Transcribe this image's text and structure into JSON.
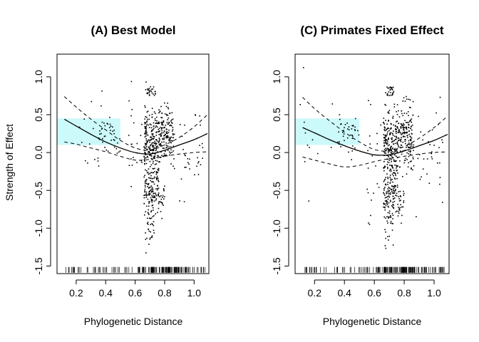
{
  "chart_data": [
    {
      "type": "scatter",
      "title": "(A) Best Model",
      "xlabel": "Phylogenetic Distance",
      "ylabel": "Strength of Effect",
      "xlim": [
        0.07,
        1.1
      ],
      "ylim": [
        -1.6,
        1.3
      ],
      "x_ticks": [
        {
          "value": 0.2,
          "label": "0.2"
        },
        {
          "value": 0.4,
          "label": "0.4"
        },
        {
          "value": 0.6,
          "label": "0.6"
        },
        {
          "value": 0.8,
          "label": "0.8"
        },
        {
          "value": 1.0,
          "label": "1.0"
        }
      ],
      "y_ticks": [
        {
          "value": 1.0,
          "label": "1.0"
        },
        {
          "value": 0.5,
          "label": "0.5"
        },
        {
          "value": 0.0,
          "label": "0.0"
        },
        {
          "value": -0.5,
          "label": "-0.5"
        },
        {
          "value": -1.0,
          "label": "-1.0"
        },
        {
          "value": -1.5,
          "label": "-1.5"
        }
      ],
      "shaded_region": {
        "x": [
          0.07,
          0.5
        ],
        "y": [
          0.1,
          0.45
        ],
        "color": "#ccf9f9"
      },
      "fit": {
        "x": [
          0.12,
          0.2,
          0.3,
          0.4,
          0.5,
          0.6,
          0.7,
          0.8,
          0.9,
          1.0,
          1.09
        ],
        "y": [
          0.44,
          0.35,
          0.24,
          0.14,
          0.06,
          0.0,
          -0.02,
          0.03,
          0.1,
          0.17,
          0.25
        ]
      },
      "upper_ci": {
        "x": [
          0.12,
          0.2,
          0.3,
          0.4,
          0.5,
          0.6,
          0.7,
          0.8,
          0.9,
          1.0,
          1.09
        ],
        "y": [
          0.74,
          0.6,
          0.44,
          0.3,
          0.16,
          0.06,
          0.03,
          0.1,
          0.2,
          0.34,
          0.5
        ]
      },
      "lower_ci": {
        "x": [
          0.12,
          0.2,
          0.3,
          0.4,
          0.5,
          0.6,
          0.7,
          0.8,
          0.9,
          1.0,
          1.09
        ],
        "y": [
          0.14,
          0.11,
          0.06,
          0.01,
          -0.05,
          -0.1,
          -0.09,
          -0.05,
          -0.02,
          0.0,
          0.01
        ]
      },
      "scatter_seed": 11
    },
    {
      "type": "scatter",
      "title": "(C) Primates Fixed Effect",
      "xlabel": "Phylogenetic Distance",
      "ylabel": "",
      "xlim": [
        0.07,
        1.1
      ],
      "ylim": [
        -1.6,
        1.3
      ],
      "x_ticks": [
        {
          "value": 0.2,
          "label": "0.2"
        },
        {
          "value": 0.4,
          "label": "0.4"
        },
        {
          "value": 0.6,
          "label": "0.6"
        },
        {
          "value": 0.8,
          "label": "0.8"
        },
        {
          "value": 1.0,
          "label": "1.0"
        }
      ],
      "y_ticks": [
        {
          "value": 1.0,
          "label": "1.0"
        },
        {
          "value": 0.5,
          "label": "0.5"
        },
        {
          "value": 0.0,
          "label": "0.0"
        },
        {
          "value": -0.5,
          "label": "-0.5"
        },
        {
          "value": -1.0,
          "label": "-1.0"
        },
        {
          "value": -1.5,
          "label": "-1.5"
        }
      ],
      "shaded_region": {
        "x": [
          0.07,
          0.5
        ],
        "y": [
          0.1,
          0.45
        ],
        "color": "#ccf9f9"
      },
      "fit": {
        "x": [
          0.12,
          0.2,
          0.3,
          0.4,
          0.5,
          0.6,
          0.7,
          0.8,
          0.9,
          1.0,
          1.09
        ],
        "y": [
          0.33,
          0.26,
          0.17,
          0.09,
          0.02,
          -0.03,
          -0.03,
          0.02,
          0.09,
          0.16,
          0.24
        ]
      },
      "upper_ci": {
        "x": [
          0.12,
          0.2,
          0.3,
          0.4,
          0.5,
          0.6,
          0.7,
          0.8,
          0.9,
          1.0,
          1.09
        ],
        "y": [
          0.73,
          0.58,
          0.42,
          0.27,
          0.14,
          0.04,
          0.02,
          0.08,
          0.19,
          0.33,
          0.48
        ]
      },
      "lower_ci": {
        "x": [
          0.12,
          0.2,
          0.3,
          0.4,
          0.5,
          0.6,
          0.7,
          0.8,
          0.9,
          1.0,
          1.09
        ],
        "y": [
          -0.06,
          -0.1,
          -0.15,
          -0.19,
          -0.17,
          -0.12,
          -0.08,
          -0.05,
          -0.02,
          0.0,
          0.01
        ]
      },
      "scatter_seed": 23
    }
  ]
}
